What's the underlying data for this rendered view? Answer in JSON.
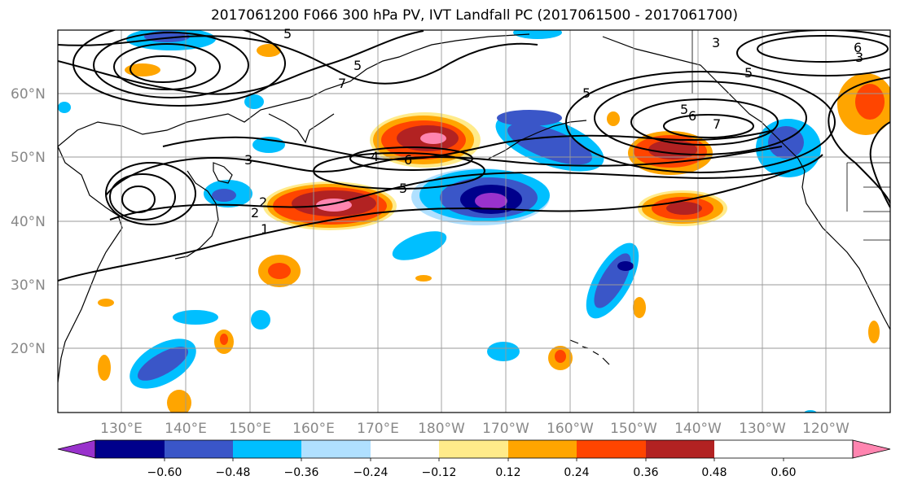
{
  "title": "2017061200 F066 300 hPa PV, IVT Landfall PC (2017061500 - 2017061700)",
  "lat_labels": [
    "60°N",
    "50°N",
    "40°N",
    "30°N",
    "20°N"
  ],
  "lon_labels": [
    "130°E",
    "140°E",
    "150°E",
    "160°E",
    "170°E",
    "180°W",
    "170°W",
    "160°W",
    "150°W",
    "140°W",
    "130°W",
    "120°W"
  ],
  "colorbar": {
    "tick_labels": [
      "−0.60",
      "−0.48",
      "−0.36",
      "−0.24",
      "−0.12",
      "0.12",
      "0.24",
      "0.36",
      "0.48",
      "0.60"
    ],
    "colors": [
      "#9932CC",
      "#00008B",
      "#3A56C8",
      "#00BFFF",
      "#B0E0FF",
      "#FFFFFF",
      "#FFEB8A",
      "#FFA500",
      "#FF4500",
      "#B22222",
      "#FF85B0"
    ]
  },
  "contour_labels": [
    "5",
    "5",
    "3",
    "6",
    "4",
    "5",
    "3",
    "7",
    "5",
    "6",
    "7",
    "5",
    "3",
    "6",
    "5",
    "2",
    "2",
    "1"
  ]
}
